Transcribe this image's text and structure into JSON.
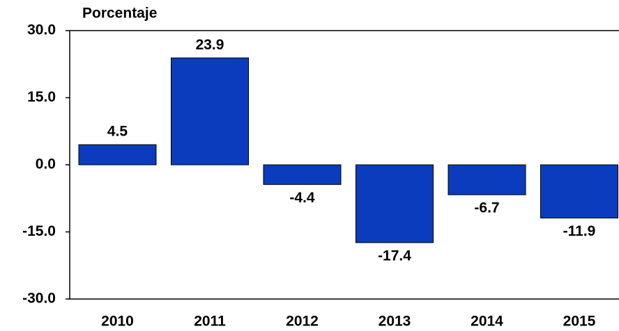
{
  "chart_data": {
    "type": "bar",
    "title": "Porcentaje",
    "categories": [
      "2010",
      "2011",
      "2012",
      "2013",
      "2014",
      "2015"
    ],
    "values": [
      4.5,
      23.9,
      -4.4,
      -17.4,
      -6.7,
      -11.9
    ],
    "color": "#0a3cbd",
    "ylim": [
      -30,
      30
    ],
    "yticks": [
      {
        "value": -30,
        "label": "-30.0"
      },
      {
        "value": -15,
        "label": "-15.0"
      },
      {
        "value": 0,
        "label": "0.0"
      },
      {
        "value": 15,
        "label": "15.0"
      },
      {
        "value": 30,
        "label": "30.0"
      }
    ]
  }
}
